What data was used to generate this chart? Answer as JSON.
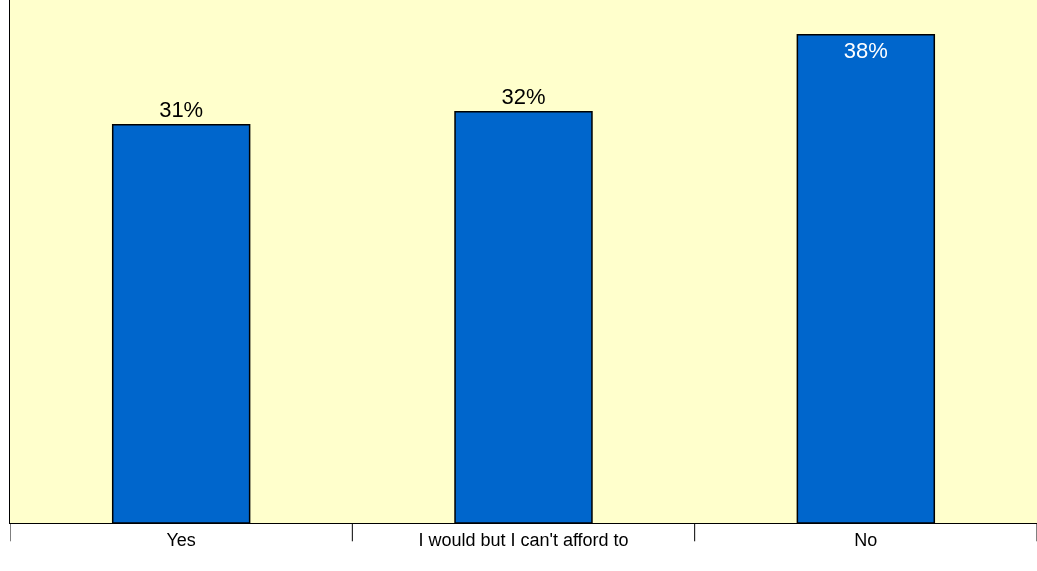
{
  "chart_data": {
    "type": "bar",
    "categories": [
      "Yes",
      "I would but I can't afford to",
      "No"
    ],
    "values": [
      31,
      32,
      38
    ],
    "value_labels": [
      "31%",
      "32%",
      "38%"
    ],
    "color": "#0066cc",
    "ylim": [
      0,
      40.7
    ],
    "grid": false,
    "legend": false
  }
}
